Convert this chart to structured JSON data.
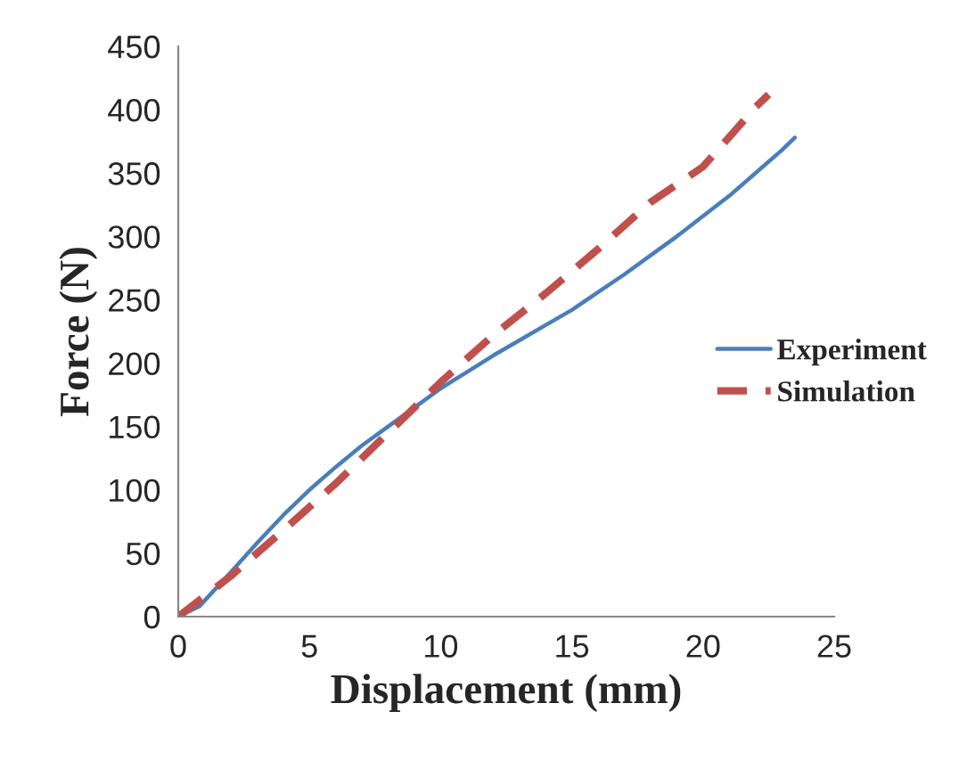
{
  "chart_data": {
    "type": "line",
    "xlabel": "Displacement (mm)",
    "ylabel": "Force (N)",
    "xlim": [
      0,
      25
    ],
    "ylim": [
      0,
      450
    ],
    "xticks": [
      0,
      5,
      10,
      15,
      20,
      25
    ],
    "yticks": [
      0,
      50,
      100,
      150,
      200,
      250,
      300,
      350,
      400,
      450
    ],
    "grid": false,
    "legend": "right",
    "series": [
      {
        "name": "Experiment",
        "color": "#4a7ebb",
        "line_style": "solid",
        "x": [
          0,
          0.8,
          2,
          3,
          4,
          5,
          6,
          7,
          8,
          9,
          10,
          11,
          12,
          13,
          14,
          15,
          16,
          17,
          18,
          19,
          20,
          21,
          22,
          23,
          23.5
        ],
        "values": [
          0,
          8,
          35,
          58,
          80,
          100,
          118,
          135,
          150,
          165,
          180,
          193,
          206,
          218,
          230,
          242,
          256,
          270,
          285,
          300,
          316,
          332,
          350,
          368,
          378
        ]
      },
      {
        "name": "Simulation",
        "color": "#c0504d",
        "line_style": "dashed",
        "x": [
          0,
          2,
          4,
          6,
          8,
          10,
          12,
          14,
          16,
          18,
          20,
          22,
          22.5
        ],
        "values": [
          0,
          32,
          68,
          105,
          145,
          185,
          222,
          255,
          290,
          327,
          355,
          402,
          412
        ]
      }
    ]
  }
}
